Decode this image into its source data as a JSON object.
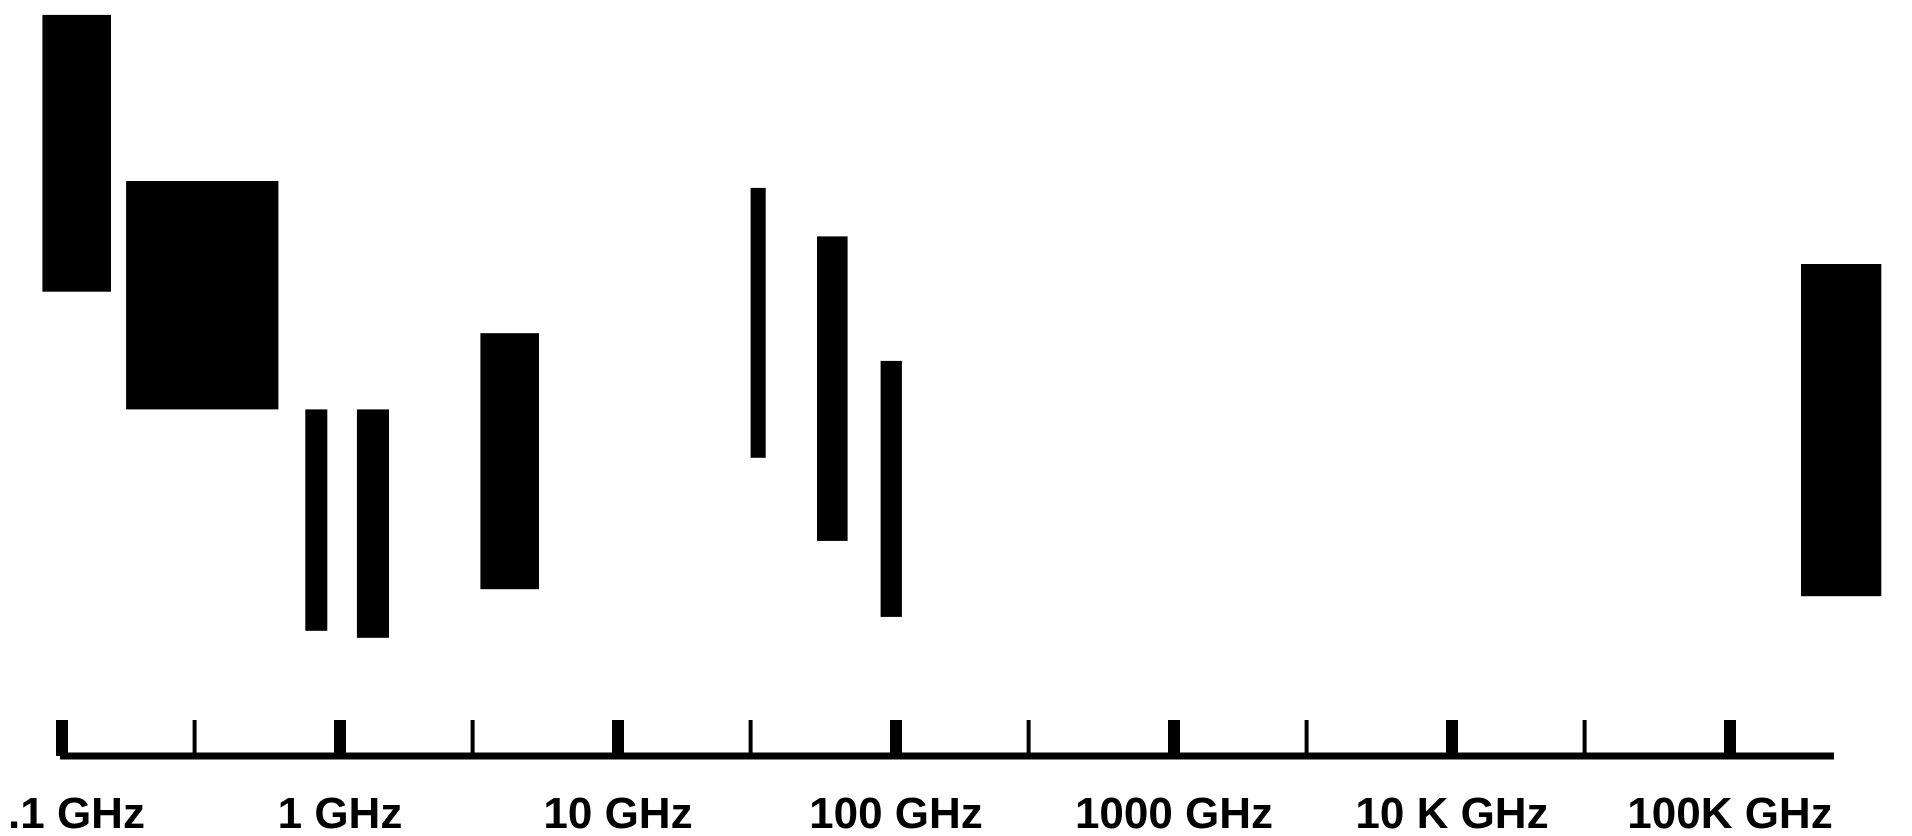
{
  "chart_data": {
    "type": "bar",
    "x_scale": "log",
    "x_unit": "GHz",
    "xlim_ghz": [
      0.1,
      100000
    ],
    "grid": false,
    "legend": "none",
    "color": "#000000",
    "tick_labels": [
      {
        "value_ghz": 0.1,
        "label": ".1 GHz"
      },
      {
        "value_ghz": 1,
        "label": "1 GHz"
      },
      {
        "value_ghz": 10,
        "label": "10 GHz"
      },
      {
        "value_ghz": 100,
        "label": "100 GHz"
      },
      {
        "value_ghz": 1000,
        "label": "1000 GHz"
      },
      {
        "value_ghz": 10000,
        "label": "10 K GHz"
      },
      {
        "value_ghz": 100000,
        "label": "100K GHz"
      }
    ],
    "minor_ticks_ghz": [
      0.3,
      3,
      30,
      300,
      3000,
      30000
    ],
    "bars": [
      {
        "x_start_ghz": 0.085,
        "x_end_ghz": 0.15,
        "y_top": 0.99,
        "y_bottom": 0.59
      },
      {
        "x_start_ghz": 0.17,
        "x_end_GHz_note": null,
        "x_end_ghz": 0.6,
        "y_top": 0.75,
        "y_bottom": 0.42
      },
      {
        "x_start_ghz": 0.75,
        "x_end_ghz": 0.9,
        "y_top": 0.42,
        "y_bottom": 0.1
      },
      {
        "x_start_ghz": 1.15,
        "x_end_ghz": 1.5,
        "y_top": 0.42,
        "y_bottom": 0.09
      },
      {
        "x_start_ghz": 3.2,
        "x_end_ghz": 5.2,
        "y_top": 0.53,
        "y_bottom": 0.16
      },
      {
        "x_start_ghz": 30,
        "x_end_ghz": 34,
        "y_top": 0.74,
        "y_bottom": 0.35
      },
      {
        "x_start_ghz": 52,
        "x_end_ghz": 67,
        "y_top": 0.67,
        "y_bottom": 0.23
      },
      {
        "x_start_ghz": 88,
        "x_end_ghz": 105,
        "y_top": 0.49,
        "y_bottom": 0.12
      },
      {
        "x_start_ghz": 180000,
        "x_end_ghz": 350000,
        "y_top": 0.63,
        "y_bottom": 0.15
      }
    ]
  }
}
